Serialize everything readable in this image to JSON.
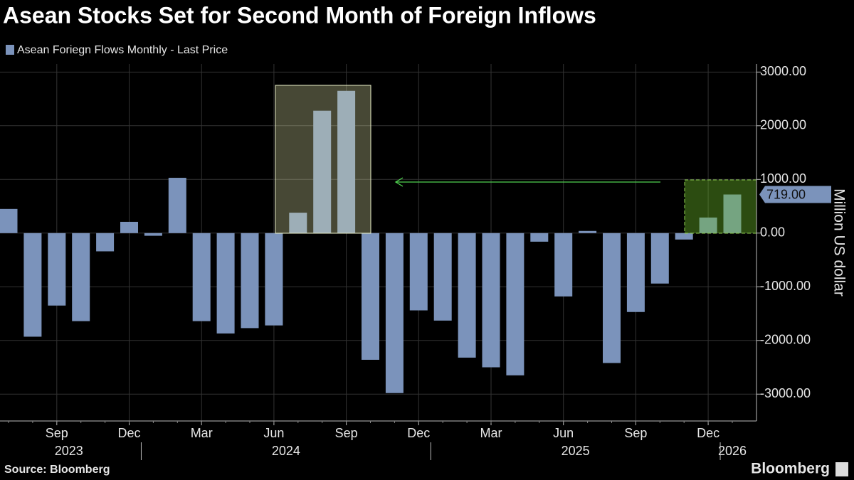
{
  "chart_data": {
    "type": "bar",
    "title": "Asean Stocks Set for Second Month of Foreign Inflows",
    "legend_label": "Asean Foriegn Flows Monthly - Last Price",
    "y_axis_label": "Million US dollar",
    "source": "Source: Bloomberg",
    "brand": "Bloomberg",
    "color": "#7b93bb",
    "grid": true,
    "x": [
      "2023-07",
      "2023-08",
      "2023-09",
      "2023-10",
      "2023-11",
      "2023-12",
      "2024-01",
      "2024-02",
      "2024-03",
      "2024-04",
      "2024-05",
      "2024-06",
      "2024-07",
      "2024-08",
      "2024-09",
      "2024-10",
      "2024-11",
      "2024-12",
      "2025-01",
      "2025-02",
      "2025-03",
      "2025-04",
      "2025-05",
      "2025-06",
      "2025-07",
      "2025-08",
      "2025-09",
      "2025-10",
      "2025-11",
      "2025-12",
      "2026-01"
    ],
    "values": [
      450,
      -1930,
      -1350,
      -1640,
      -340,
      210,
      -50,
      1030,
      -1640,
      -1870,
      -1770,
      -1720,
      380,
      2280,
      2650,
      -2360,
      -2980,
      -1440,
      -1630,
      -2320,
      -2500,
      -2650,
      -160,
      -1180,
      40,
      -2420,
      -1470,
      -940,
      -120,
      290,
      719
    ],
    "value_labels": [
      null,
      null,
      null,
      null,
      null,
      null,
      null,
      null,
      null,
      null,
      null,
      null,
      null,
      null,
      null,
      null,
      null,
      null,
      null,
      null,
      null,
      null,
      null,
      null,
      null,
      null,
      null,
      null,
      null,
      null,
      "719.00"
    ],
    "xticks": [
      {
        "value": "2023-09",
        "label": "Sep"
      },
      {
        "value": "2023-12",
        "label": "Dec"
      },
      {
        "value": "2024-03",
        "label": "Mar"
      },
      {
        "value": "2024-06",
        "label": "Jun"
      },
      {
        "value": "2024-09",
        "label": "Sep"
      },
      {
        "value": "2024-12",
        "label": "Dec"
      },
      {
        "value": "2025-03",
        "label": "Mar"
      },
      {
        "value": "2025-06",
        "label": "Jun"
      },
      {
        "value": "2025-09",
        "label": "Sep"
      },
      {
        "value": "2025-12",
        "label": "Dec"
      }
    ],
    "year_labels": [
      "2023",
      "2024",
      "2025",
      "2026"
    ],
    "ylim": [
      -3500,
      3150
    ],
    "yticks": [
      {
        "value": 3000,
        "label": "3000.00"
      },
      {
        "value": 2000,
        "label": "2000.00"
      },
      {
        "value": 1000,
        "label": "1000.00"
      },
      {
        "value": 0,
        "label": "0.00"
      },
      {
        "value": -1000,
        "label": "-1000.00"
      },
      {
        "value": -2000,
        "label": "-2000.00"
      },
      {
        "value": -3000,
        "label": "-3000.00"
      }
    ]
  }
}
